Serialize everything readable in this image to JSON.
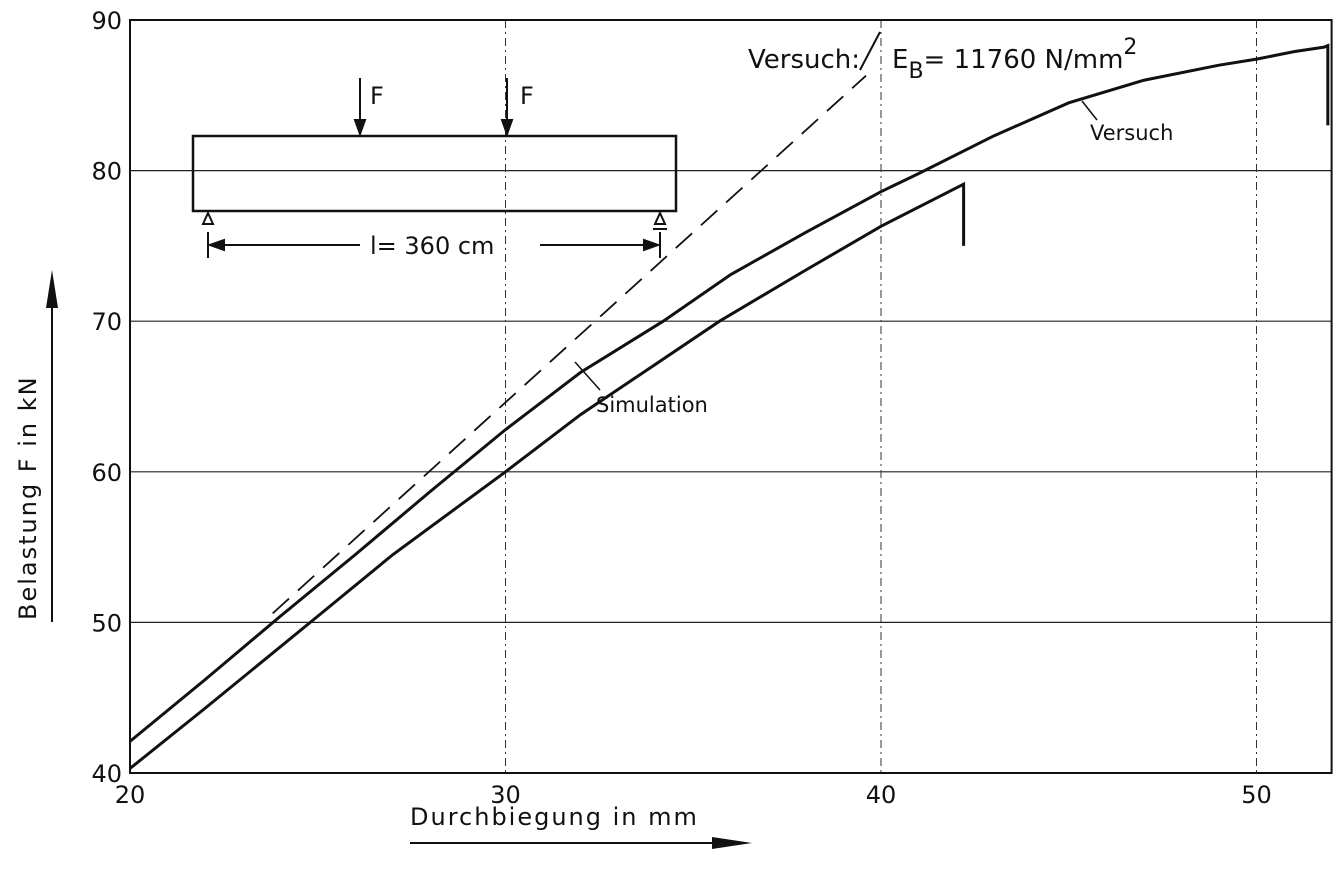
{
  "chart_data": {
    "type": "line",
    "xlabel": "Durchbiegung in mm",
    "ylabel": "Belastung F in kN",
    "xlim": [
      20,
      52
    ],
    "ylim": [
      40,
      90
    ],
    "xticks": [
      20,
      30,
      40,
      50
    ],
    "yticks": [
      40,
      50,
      60,
      70,
      80,
      90
    ],
    "grid": true,
    "series": [
      {
        "name": "Versuch",
        "color": "#111111",
        "x": [
          20,
          22,
          24,
          26,
          28,
          30,
          32,
          34.2,
          36,
          38,
          40,
          41,
          43,
          45,
          47,
          49,
          50,
          51,
          51.8,
          51.9,
          51.9
        ],
        "values": [
          42.1,
          46.2,
          50.4,
          54.5,
          58.7,
          62.8,
          66.6,
          70,
          73.1,
          75.9,
          78.6,
          79.8,
          82.3,
          84.5,
          86,
          87,
          87.4,
          87.9,
          88.2,
          88.3,
          83
        ]
      },
      {
        "name": "Simulation",
        "color": "#111111",
        "x": [
          20,
          22,
          24.8,
          27,
          30,
          32,
          35.7,
          38,
          40,
          42.2,
          42.2
        ],
        "values": [
          40.3,
          44.3,
          50,
          54.5,
          60,
          63.8,
          70,
          73.4,
          76.3,
          79.1,
          75
        ]
      },
      {
        "color": "#111111",
        "dash": true,
        "x": [
          23.8,
          39.6
        ],
        "values": [
          50.6,
          86.3
        ]
      }
    ],
    "annotations": {
      "versuch_colon": "Versuch:",
      "e": "E",
      "e_sub": "B",
      "e_rest": "= 11760 N/mm",
      "e_sup": "2",
      "force_left": "F",
      "force_right": "F",
      "span": "l= 360 cm"
    }
  }
}
